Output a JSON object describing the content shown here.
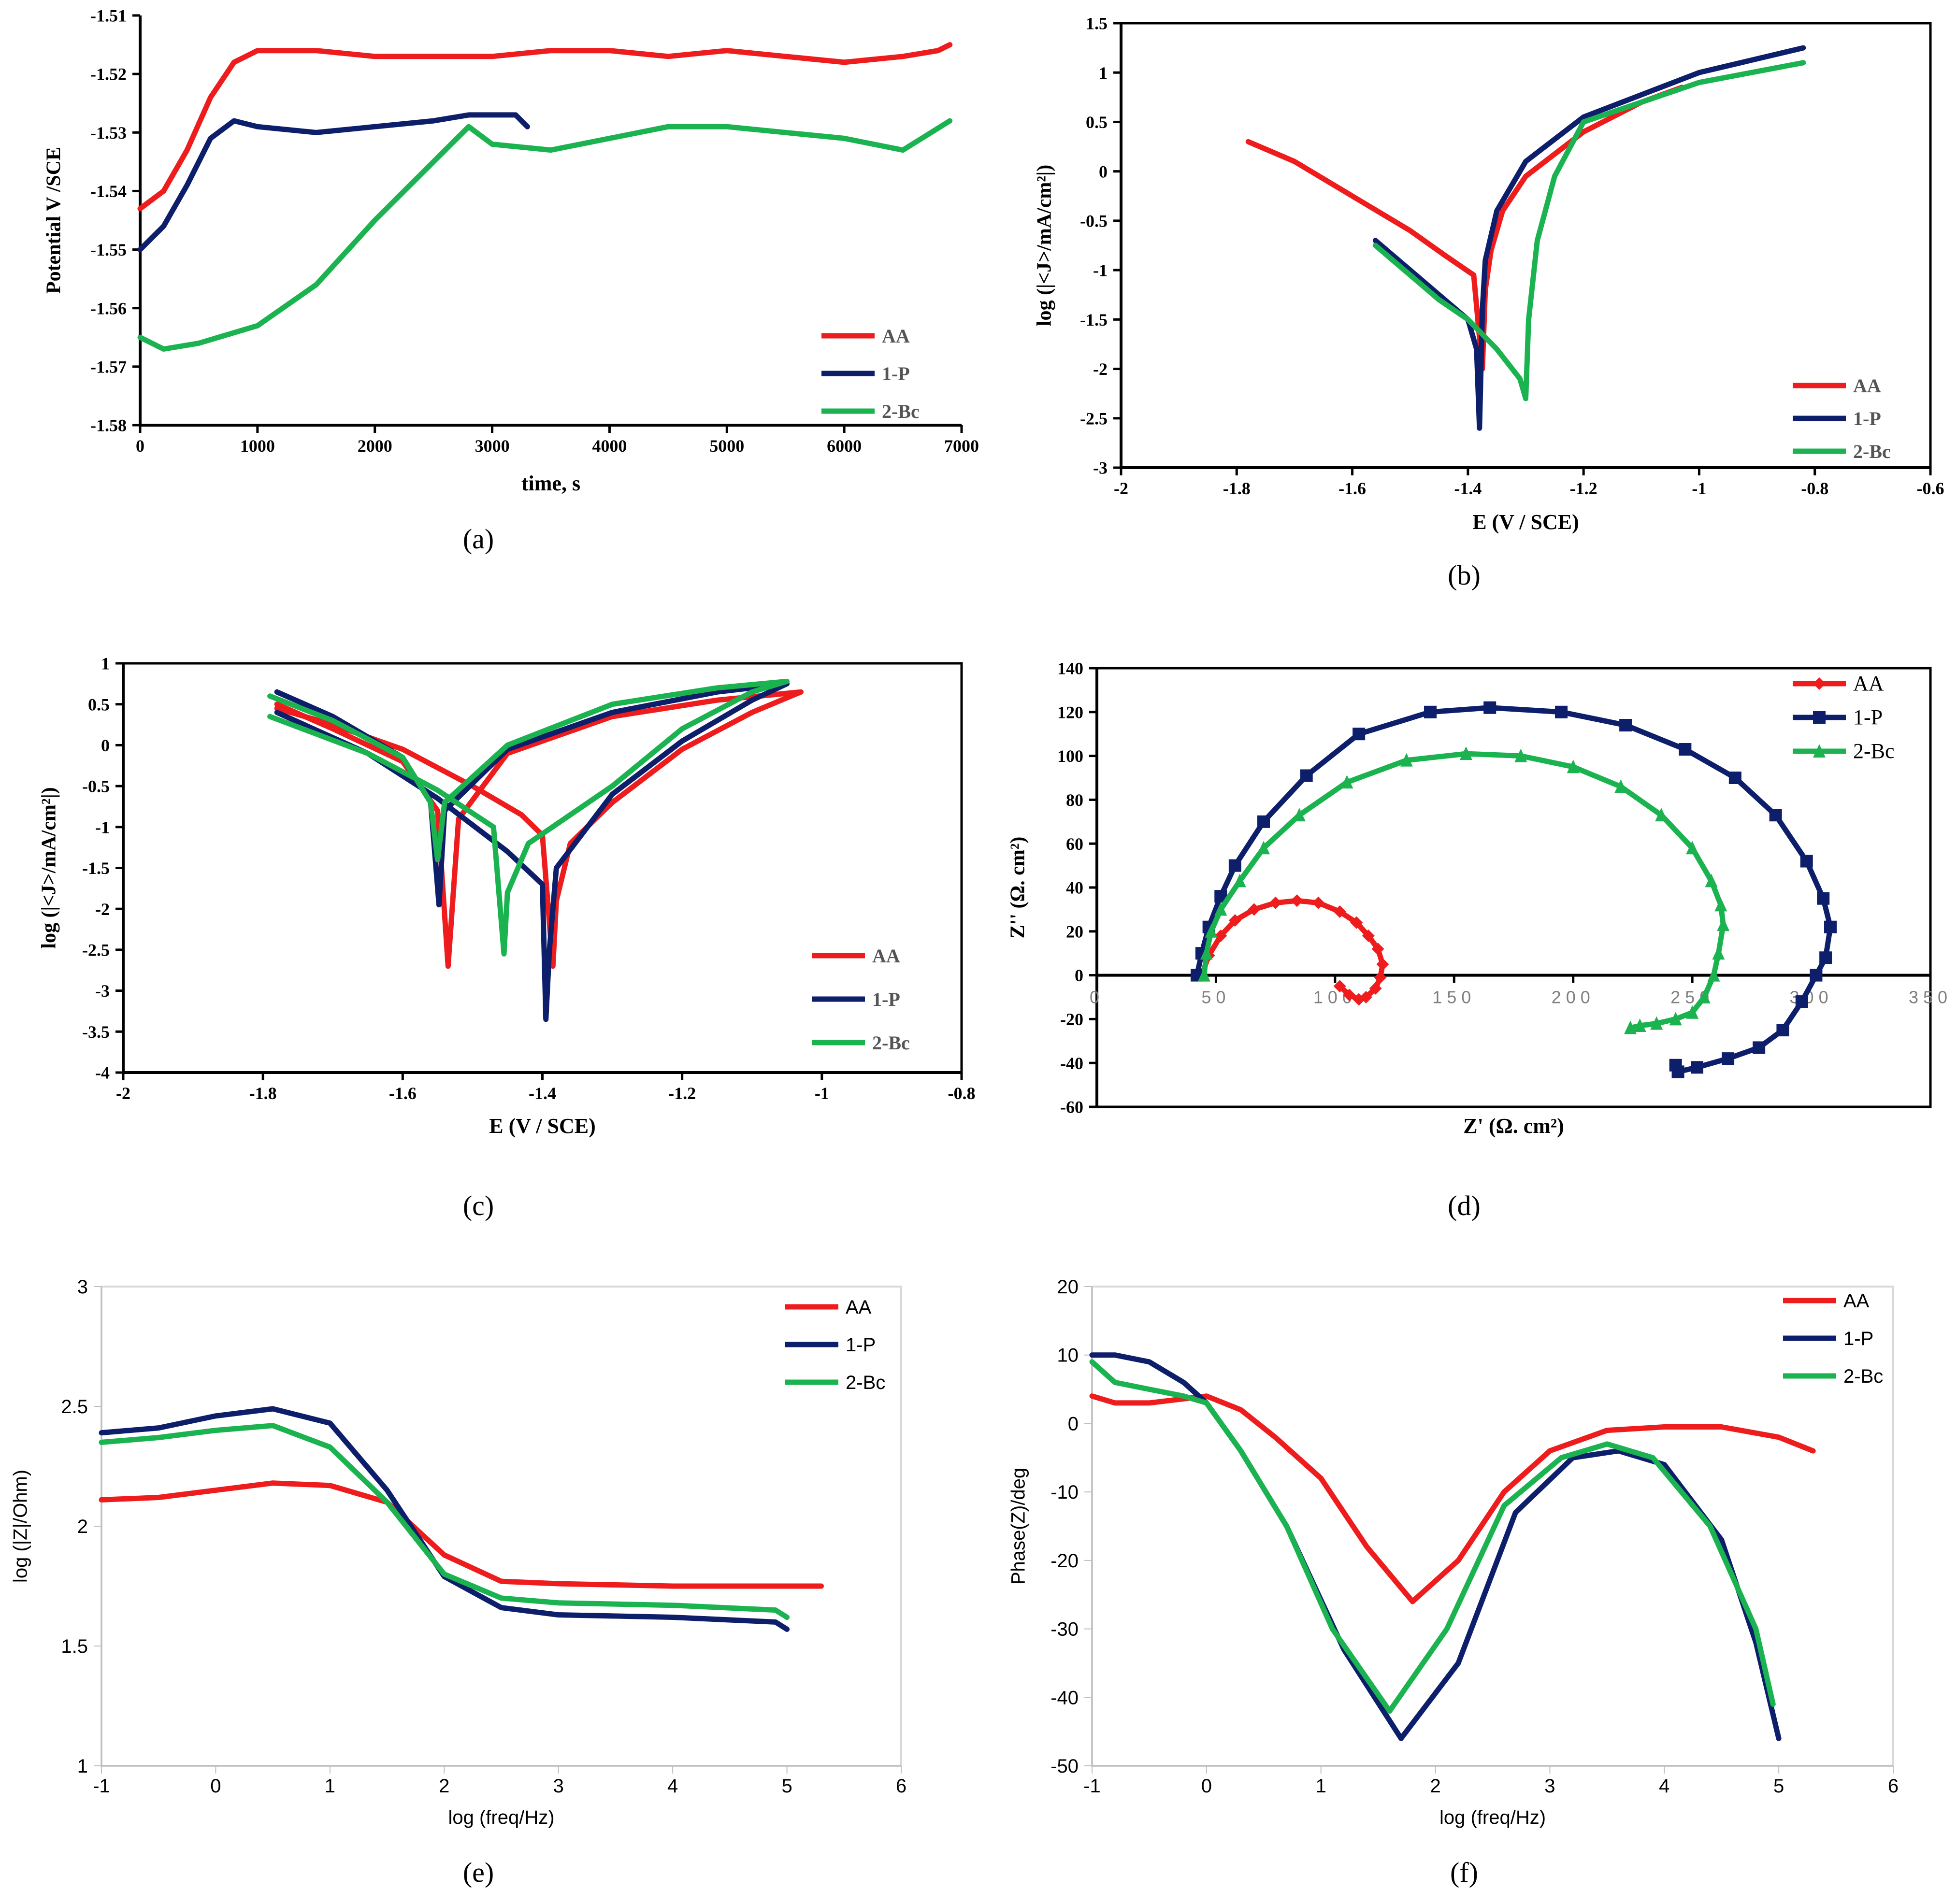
{
  "colors": {
    "AA": "#ee1c1c",
    "1-P": "#0d1e6b",
    "2-Bc": "#1bb350",
    "axis": "#000000"
  },
  "chart_data": [
    {
      "id": "a",
      "type": "line",
      "caption": "(a)",
      "xlabel": "time, s",
      "ylabel": "Potential V /SCE",
      "xlim": [
        0,
        7000
      ],
      "ylim": [
        -1.58,
        -1.51
      ],
      "xticks": [
        0,
        1000,
        2000,
        3000,
        4000,
        5000,
        6000,
        7000
      ],
      "yticks": [
        -1.58,
        -1.57,
        -1.56,
        -1.55,
        -1.54,
        -1.53,
        -1.52,
        -1.51
      ],
      "grid": false,
      "legend_position": "bottom-right",
      "series": [
        {
          "name": "AA",
          "x": [
            0,
            200,
            400,
            600,
            800,
            1000,
            1500,
            2000,
            2500,
            3000,
            3500,
            4000,
            4500,
            5000,
            5500,
            6000,
            6500,
            6800,
            6900
          ],
          "y": [
            -1.543,
            -1.54,
            -1.533,
            -1.524,
            -1.518,
            -1.516,
            -1.516,
            -1.517,
            -1.517,
            -1.517,
            -1.516,
            -1.516,
            -1.517,
            -1.516,
            -1.517,
            -1.518,
            -1.517,
            -1.516,
            -1.515
          ]
        },
        {
          "name": "1-P",
          "x": [
            0,
            200,
            400,
            600,
            800,
            1000,
            1500,
            2000,
            2500,
            2800,
            3000,
            3200,
            3300
          ],
          "y": [
            -1.55,
            -1.546,
            -1.539,
            -1.531,
            -1.528,
            -1.529,
            -1.53,
            -1.529,
            -1.528,
            -1.527,
            -1.527,
            -1.527,
            -1.529
          ]
        },
        {
          "name": "2-Bc",
          "x": [
            0,
            200,
            500,
            1000,
            1500,
            2000,
            2200,
            2500,
            2700,
            2800,
            3000,
            3500,
            4000,
            4500,
            5000,
            5500,
            6000,
            6500,
            6900
          ],
          "y": [
            -1.565,
            -1.567,
            -1.566,
            -1.563,
            -1.556,
            -1.545,
            -1.541,
            -1.535,
            -1.531,
            -1.529,
            -1.532,
            -1.533,
            -1.531,
            -1.529,
            -1.529,
            -1.53,
            -1.531,
            -1.533,
            -1.528
          ]
        }
      ]
    },
    {
      "id": "b",
      "type": "line",
      "caption": "(b)",
      "xlabel": "E (V / SCE)",
      "ylabel": "log (|<J>/mA/cm²|)",
      "xlim": [
        -2,
        -0.6
      ],
      "ylim": [
        -3,
        1.5
      ],
      "xticks": [
        -2,
        -1.8,
        -1.6,
        -1.4,
        -1.2,
        -1,
        -0.8,
        -0.6
      ],
      "yticks": [
        -3,
        -2.5,
        -2,
        -1.5,
        -1,
        -0.5,
        0,
        0.5,
        1,
        1.5
      ],
      "grid": false,
      "legend_position": "bottom-right",
      "series": [
        {
          "name": "AA",
          "x": [
            -1.78,
            -1.7,
            -1.6,
            -1.5,
            -1.44,
            -1.39,
            -1.375,
            -1.37,
            -1.36,
            -1.34,
            -1.3,
            -1.2,
            -1.1,
            -1.03
          ],
          "y": [
            0.3,
            0.1,
            -0.25,
            -0.6,
            -0.85,
            -1.05,
            -2.0,
            -1.2,
            -0.8,
            -0.4,
            -0.05,
            0.4,
            0.7,
            0.85
          ]
        },
        {
          "name": "1-P",
          "x": [
            -1.56,
            -1.5,
            -1.45,
            -1.4,
            -1.385,
            -1.38,
            -1.375,
            -1.37,
            -1.35,
            -1.3,
            -1.2,
            -1.0,
            -0.82
          ],
          "y": [
            -0.7,
            -1.0,
            -1.25,
            -1.5,
            -1.8,
            -2.6,
            -1.4,
            -0.9,
            -0.4,
            0.1,
            0.55,
            1.0,
            1.25
          ]
        },
        {
          "name": "2-Bc",
          "x": [
            -1.56,
            -1.5,
            -1.45,
            -1.4,
            -1.35,
            -1.31,
            -1.3,
            -1.295,
            -1.28,
            -1.25,
            -1.2,
            -1.0,
            -0.82
          ],
          "y": [
            -0.75,
            -1.05,
            -1.3,
            -1.5,
            -1.8,
            -2.1,
            -2.3,
            -1.5,
            -0.7,
            -0.05,
            0.5,
            0.9,
            1.1
          ]
        }
      ]
    },
    {
      "id": "c",
      "type": "line",
      "caption": "(c)",
      "xlabel": "E (V / SCE)",
      "ylabel": "log (|<J>/mA/cm²|)",
      "xlim": [
        -2,
        -0.8
      ],
      "ylim": [
        -4,
        1
      ],
      "xticks": [
        -2,
        -1.8,
        -1.6,
        -1.4,
        -1.2,
        -1,
        -0.8
      ],
      "yticks": [
        -4,
        -3.5,
        -3,
        -2.5,
        -2,
        -1.5,
        -1,
        -0.5,
        0,
        0.5,
        1
      ],
      "grid": false,
      "legend_position": "bottom-right",
      "series": [
        {
          "name": "AA",
          "x": [
            -1.78,
            -1.7,
            -1.6,
            -1.55,
            -1.535,
            -1.52,
            -1.45,
            -1.3,
            -1.15,
            -1.03,
            -1.1,
            -1.2,
            -1.3,
            -1.36,
            -1.38,
            -1.385,
            -1.4,
            -1.43,
            -1.5,
            -1.6,
            -1.7,
            -1.78
          ],
          "y": [
            0.5,
            0.2,
            -0.2,
            -0.8,
            -2.7,
            -0.9,
            -0.1,
            0.35,
            0.55,
            0.65,
            0.4,
            -0.05,
            -0.7,
            -1.2,
            -1.9,
            -2.7,
            -1.1,
            -0.85,
            -0.5,
            -0.05,
            0.25,
            0.45
          ]
        },
        {
          "name": "1-P",
          "x": [
            -1.78,
            -1.7,
            -1.6,
            -1.56,
            -1.548,
            -1.54,
            -1.45,
            -1.3,
            -1.15,
            -1.05,
            -1.1,
            -1.2,
            -1.3,
            -1.38,
            -1.39,
            -1.395,
            -1.4,
            -1.45,
            -1.55,
            -1.65,
            -1.78
          ],
          "y": [
            0.65,
            0.35,
            -0.15,
            -0.7,
            -1.95,
            -0.8,
            -0.05,
            0.4,
            0.65,
            0.75,
            0.55,
            0.05,
            -0.6,
            -1.5,
            -2.5,
            -3.35,
            -1.7,
            -1.3,
            -0.65,
            -0.1,
            0.4
          ]
        },
        {
          "name": "2-Bc",
          "x": [
            -1.79,
            -1.7,
            -1.6,
            -1.56,
            -1.55,
            -1.54,
            -1.45,
            -1.3,
            -1.15,
            -1.05,
            -1.1,
            -1.2,
            -1.3,
            -1.42,
            -1.45,
            -1.455,
            -1.47,
            -1.55,
            -1.65,
            -1.79
          ],
          "y": [
            0.6,
            0.3,
            -0.15,
            -0.7,
            -1.4,
            -0.7,
            0.0,
            0.5,
            0.7,
            0.78,
            0.65,
            0.2,
            -0.5,
            -1.2,
            -1.8,
            -2.55,
            -1.0,
            -0.55,
            -0.1,
            0.35
          ]
        }
      ]
    },
    {
      "id": "d",
      "type": "scatter",
      "caption": "(d)",
      "xlabel": "Z' (Ω. cm²)",
      "ylabel": "Z'' (Ω. cm²)",
      "xlim": [
        0,
        350
      ],
      "ylim": [
        -60,
        140
      ],
      "xticks": [
        0,
        50,
        100,
        150,
        200,
        250,
        300,
        350
      ],
      "yticks": [
        -60,
        -40,
        -20,
        0,
        20,
        40,
        60,
        80,
        100,
        120,
        140
      ],
      "grid": false,
      "legend_position": "top-right",
      "series": [
        {
          "name": "AA",
          "marker": "diamond",
          "x": [
            44,
            47,
            52,
            58,
            66,
            75,
            84,
            93,
            102,
            109,
            114,
            118,
            120,
            119,
            117,
            113,
            110,
            106,
            102
          ],
          "y": [
            0,
            9,
            18,
            25,
            30,
            33,
            34,
            33,
            29,
            24,
            18,
            12,
            5,
            -1,
            -6,
            -10,
            -11,
            -9,
            -5
          ]
        },
        {
          "name": "1-P",
          "marker": "square",
          "x": [
            42,
            44,
            47,
            52,
            58,
            70,
            88,
            110,
            140,
            165,
            195,
            222,
            247,
            268,
            285,
            298,
            305,
            308,
            306,
            302,
            296,
            288,
            278,
            265,
            252,
            244,
            243
          ],
          "y": [
            0,
            10,
            22,
            36,
            50,
            70,
            91,
            110,
            120,
            122,
            120,
            114,
            103,
            90,
            73,
            52,
            35,
            22,
            8,
            0,
            -12,
            -25,
            -33,
            -38,
            -42,
            -44,
            -41
          ]
        },
        {
          "name": "2-Bc",
          "marker": "triangle",
          "x": [
            45,
            46,
            48,
            52,
            60,
            70,
            85,
            105,
            130,
            155,
            178,
            200,
            220,
            237,
            250,
            258,
            262,
            263,
            261,
            259,
            255,
            250,
            243,
            235,
            228,
            224
          ],
          "y": [
            0,
            10,
            20,
            30,
            43,
            58,
            73,
            88,
            98,
            101,
            100,
            95,
            86,
            73,
            58,
            43,
            32,
            23,
            10,
            0,
            -10,
            -17,
            -20,
            -22,
            -23,
            -24
          ]
        }
      ]
    },
    {
      "id": "e",
      "type": "line",
      "caption": "(e)",
      "xlabel": "log (freq/Hz)",
      "ylabel": "log (|Z|/Ohm)",
      "xlim": [
        -1,
        6
      ],
      "ylim": [
        1,
        3
      ],
      "xticks": [
        -1,
        0,
        1,
        2,
        3,
        4,
        5,
        6
      ],
      "yticks": [
        1,
        1.5,
        2,
        2.5,
        3
      ],
      "grid": false,
      "legend_position": "top-right",
      "series": [
        {
          "name": "AA",
          "x": [
            -1,
            -0.5,
            0,
            0.5,
            1,
            1.5,
            2,
            2.5,
            3,
            4,
            5,
            5.3
          ],
          "y": [
            2.11,
            2.12,
            2.15,
            2.18,
            2.17,
            2.1,
            1.88,
            1.77,
            1.76,
            1.75,
            1.75,
            1.75
          ]
        },
        {
          "name": "1-P",
          "x": [
            -1,
            -0.5,
            0,
            0.5,
            1,
            1.5,
            2,
            2.5,
            3,
            4,
            4.9,
            5
          ],
          "y": [
            2.39,
            2.41,
            2.46,
            2.49,
            2.43,
            2.15,
            1.79,
            1.66,
            1.63,
            1.62,
            1.6,
            1.57
          ]
        },
        {
          "name": "2-Bc",
          "x": [
            -1,
            -0.5,
            0,
            0.5,
            1,
            1.5,
            2,
            2.5,
            3,
            4,
            4.9,
            5
          ],
          "y": [
            2.35,
            2.37,
            2.4,
            2.42,
            2.33,
            2.1,
            1.8,
            1.7,
            1.68,
            1.67,
            1.65,
            1.62
          ]
        }
      ]
    },
    {
      "id": "f",
      "type": "line",
      "caption": "(f)",
      "xlabel": "log (freq/Hz)",
      "ylabel": "Phase(Z)/deg",
      "xlim": [
        -1,
        6
      ],
      "ylim": [
        -50,
        20
      ],
      "xticks": [
        -1,
        0,
        1,
        2,
        3,
        4,
        5,
        6
      ],
      "yticks": [
        -50,
        -40,
        -30,
        -20,
        -10,
        0,
        10,
        20
      ],
      "grid": false,
      "legend_position": "top-right",
      "series": [
        {
          "name": "AA",
          "x": [
            -1,
            -0.8,
            -0.5,
            0,
            0.3,
            0.6,
            1,
            1.4,
            1.8,
            2.2,
            2.6,
            3,
            3.5,
            4,
            4.5,
            5,
            5.3
          ],
          "y": [
            4,
            3,
            3,
            4,
            2,
            -2,
            -8,
            -18,
            -26,
            -20,
            -10,
            -4,
            -1,
            -0.5,
            -0.5,
            -2,
            -4
          ]
        },
        {
          "name": "1-P",
          "x": [
            -1,
            -0.8,
            -0.5,
            -0.2,
            0,
            0.3,
            0.7,
            1.2,
            1.7,
            2.2,
            2.7,
            3.2,
            3.6,
            4,
            4.5,
            4.8,
            5
          ],
          "y": [
            10,
            10,
            9,
            6,
            3,
            -4,
            -15,
            -33,
            -46,
            -35,
            -13,
            -5,
            -4,
            -6,
            -17,
            -32,
            -46
          ]
        },
        {
          "name": "2-Bc",
          "x": [
            -1,
            -0.8,
            -0.5,
            -0.2,
            0,
            0.3,
            0.7,
            1.1,
            1.6,
            2.1,
            2.6,
            3.1,
            3.5,
            3.9,
            4.4,
            4.8,
            4.95
          ],
          "y": [
            9,
            6,
            5,
            4,
            3,
            -4,
            -15,
            -30,
            -42,
            -30,
            -12,
            -5,
            -3,
            -5,
            -15,
            -30,
            -41
          ]
        }
      ]
    }
  ]
}
